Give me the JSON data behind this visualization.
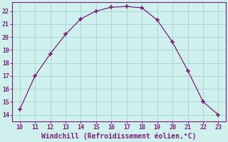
{
  "x": [
    10,
    11,
    12,
    13,
    14,
    15,
    16,
    17,
    18,
    19,
    20,
    21,
    22,
    23
  ],
  "y": [
    14.4,
    17.0,
    18.7,
    20.2,
    21.4,
    22.0,
    22.3,
    22.35,
    22.25,
    21.3,
    19.6,
    17.4,
    15.0,
    14.0
  ],
  "line_color": "#7a1f7a",
  "marker": "+",
  "bg_color": "#cff0ec",
  "grid_color": "#a8d8d2",
  "xlabel": "Windchill (Refroidissement éolien,°C)",
  "xlabel_color": "#7a1f7a",
  "tick_color": "#7a1f7a",
  "xlim": [
    9.5,
    23.5
  ],
  "ylim": [
    13.5,
    22.7
  ],
  "xticks": [
    10,
    11,
    12,
    13,
    14,
    15,
    16,
    17,
    18,
    19,
    20,
    21,
    22,
    23
  ],
  "yticks": [
    14,
    15,
    16,
    17,
    18,
    19,
    20,
    21,
    22
  ],
  "spine_color": "#7a1f7a"
}
